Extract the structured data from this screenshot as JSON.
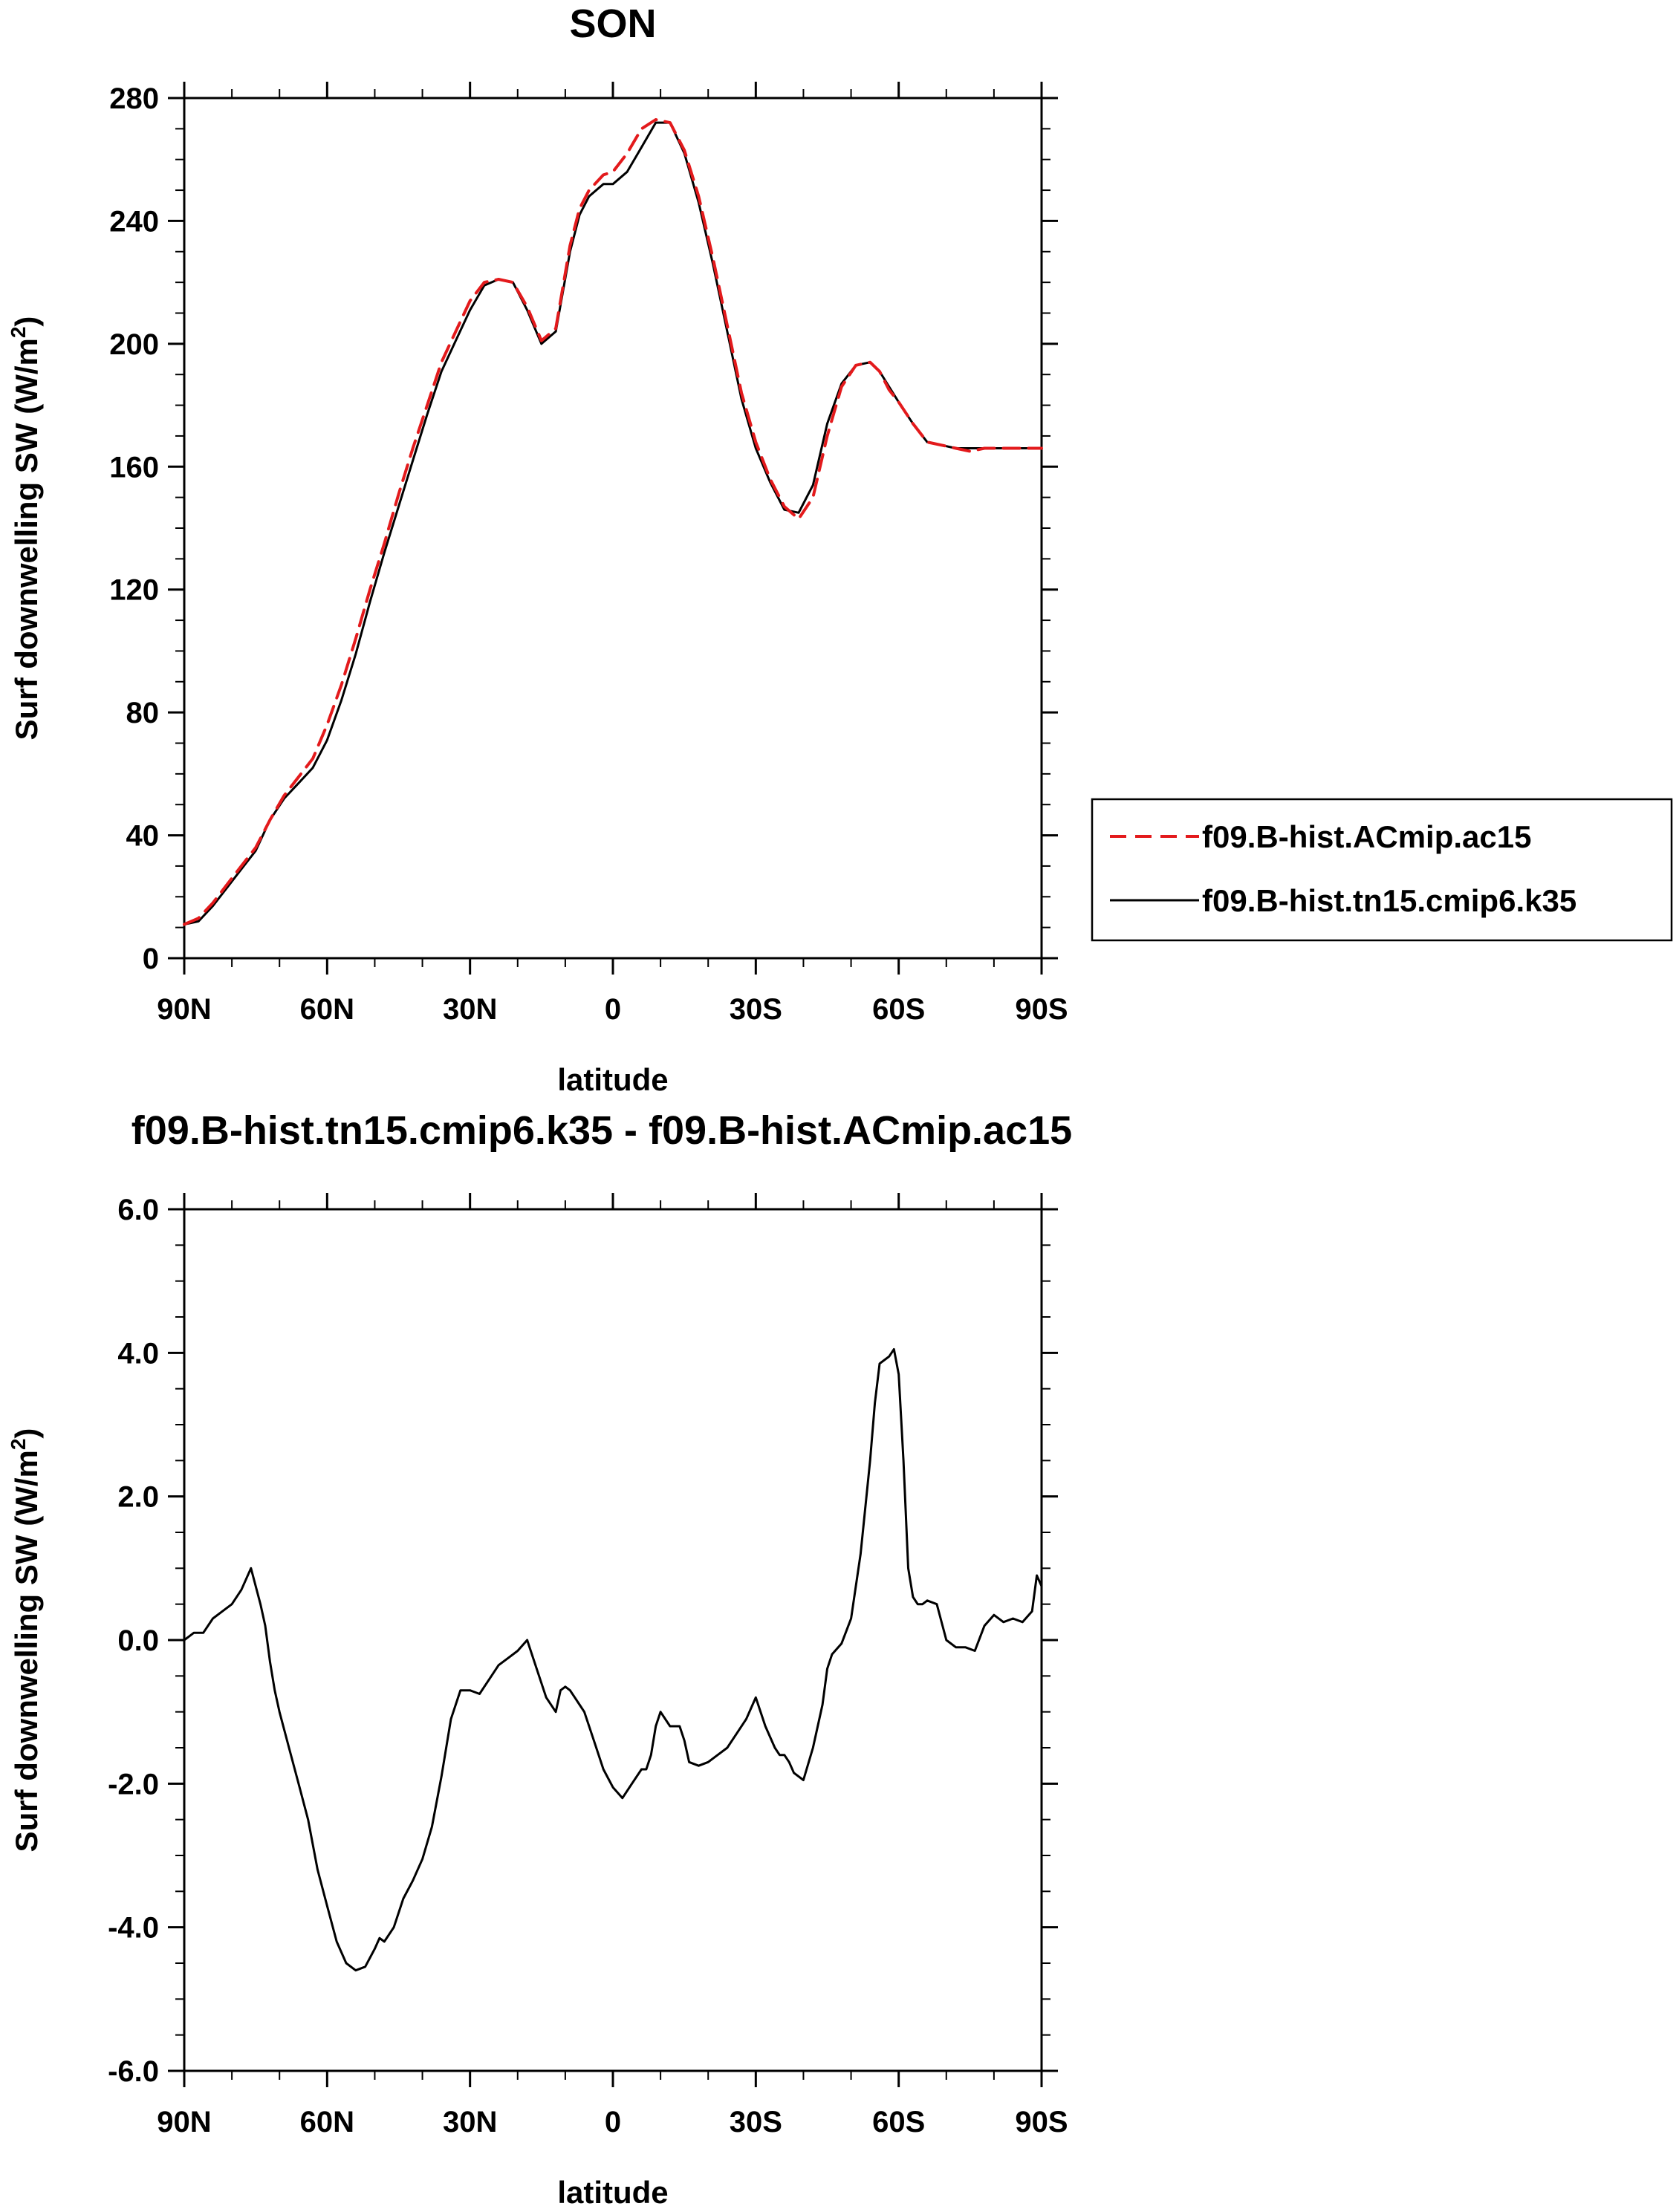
{
  "chart_data": [
    {
      "type": "line",
      "title": "SON",
      "xlabel": "latitude",
      "ylabel": "Surf downwelling SW (W/m",
      "ylabel_sup": "2",
      "ylabel_close": ")",
      "xlim": [
        90,
        -90
      ],
      "ylim": [
        0,
        280
      ],
      "x_ticks": [
        90,
        60,
        30,
        0,
        -30,
        -60,
        -90
      ],
      "x_tick_labels": [
        "90N",
        "60N",
        "30N",
        "0",
        "30S",
        "60S",
        "90S"
      ],
      "y_ticks": [
        0,
        40,
        80,
        120,
        160,
        200,
        240,
        280
      ],
      "y_tick_labels": [
        "0",
        "40",
        "80",
        "120",
        "160",
        "200",
        "240",
        "280"
      ],
      "legend_position": "right",
      "series": [
        {
          "name": "f09.B-hist.ACmip.ac15",
          "color": "#e31a1c",
          "dash": "dashed",
          "x": [
            90,
            87,
            84,
            81,
            78,
            75,
            72,
            69,
            66,
            63,
            60,
            57,
            54,
            51,
            48,
            45,
            42,
            39,
            36,
            33,
            30,
            27,
            24,
            21,
            18,
            15,
            12,
            9,
            7,
            5,
            2,
            0,
            -3,
            -6,
            -9,
            -12,
            -15,
            -18,
            -21,
            -24,
            -27,
            -30,
            -33,
            -36,
            -39,
            -42,
            -45,
            -48,
            -51,
            -54,
            -56,
            -58,
            -60,
            -63,
            -66,
            -69,
            -72,
            -75,
            -78,
            -81,
            -84,
            -87,
            -90
          ],
          "y": [
            11,
            13,
            18,
            24,
            30,
            36,
            45,
            53,
            59,
            65,
            76,
            89,
            104,
            120,
            135,
            151,
            166,
            180,
            194,
            204,
            214,
            220,
            221,
            220,
            212,
            201,
            205,
            232,
            244,
            250,
            255,
            256,
            262,
            270,
            273,
            272,
            263,
            248,
            228,
            206,
            184,
            168,
            156,
            147,
            143,
            150,
            170,
            186,
            193,
            194,
            191,
            185,
            181,
            174,
            168,
            167,
            166,
            165,
            166,
            166,
            166,
            166,
            166
          ]
        },
        {
          "name": "f09.B-hist.tn15.cmip6.k35",
          "color": "#000000",
          "dash": "solid",
          "x": [
            90,
            87,
            84,
            81,
            78,
            75,
            72,
            69,
            66,
            63,
            60,
            57,
            54,
            51,
            48,
            45,
            42,
            39,
            36,
            33,
            30,
            27,
            24,
            21,
            18,
            15,
            12,
            9,
            7,
            5,
            2,
            0,
            -3,
            -6,
            -9,
            -12,
            -15,
            -18,
            -21,
            -24,
            -27,
            -30,
            -33,
            -36,
            -39,
            -42,
            -45,
            -48,
            -51,
            -54,
            -56,
            -58,
            -60,
            -63,
            -66,
            -69,
            -72,
            -75,
            -78,
            -81,
            -84,
            -87,
            -90
          ],
          "y": [
            11,
            12,
            17,
            23,
            29,
            35,
            45,
            52,
            57,
            62,
            71,
            84,
            99,
            116,
            132,
            147,
            162,
            177,
            191,
            201,
            211,
            219,
            221,
            220,
            211,
            200,
            204,
            230,
            242,
            248,
            252,
            252,
            256,
            264,
            272,
            272,
            262,
            246,
            226,
            204,
            182,
            166,
            155,
            146,
            145,
            154,
            174,
            187,
            193,
            194,
            191,
            186,
            181,
            174,
            168,
            167,
            166,
            166,
            166,
            166,
            166,
            166,
            166
          ]
        }
      ]
    },
    {
      "type": "line",
      "title": "f09.B-hist.tn15.cmip6.k35 - f09.B-hist.ACmip.ac15",
      "xlabel": "latitude",
      "ylabel": "Surf downwelling SW (W/m",
      "ylabel_sup": "2",
      "ylabel_close": ")",
      "xlim": [
        90,
        -90
      ],
      "ylim": [
        -6,
        6
      ],
      "x_ticks": [
        90,
        60,
        30,
        0,
        -30,
        -60,
        -90
      ],
      "x_tick_labels": [
        "90N",
        "60N",
        "30N",
        "0",
        "30S",
        "60S",
        "90S"
      ],
      "y_ticks": [
        -6,
        -4,
        -2,
        0,
        2,
        4,
        6
      ],
      "y_tick_labels": [
        "-6.0",
        "-4.0",
        "-2.0",
        "0.0",
        "2.0",
        "4.0",
        "6.0"
      ],
      "series": [
        {
          "color": "#000000",
          "dash": "solid",
          "x": [
            90,
            88,
            86,
            84,
            82,
            80,
            78,
            76,
            74,
            73,
            72,
            71,
            70,
            68,
            66,
            64,
            62,
            60,
            58,
            56,
            54,
            52,
            50,
            49,
            48,
            46,
            44,
            42,
            40,
            38,
            36,
            34,
            32,
            30,
            28,
            27,
            26,
            24,
            22,
            20,
            18,
            16,
            14,
            12,
            11,
            10,
            9,
            8,
            7,
            6,
            4,
            2,
            0,
            -2,
            -4,
            -6,
            -7,
            -8,
            -9,
            -10,
            -12,
            -14,
            -15,
            -16,
            -18,
            -20,
            -22,
            -24,
            -26,
            -28,
            -30,
            -32,
            -34,
            -35,
            -36,
            -37,
            -38,
            -40,
            -42,
            -44,
            -45,
            -46,
            -48,
            -50,
            -52,
            -54,
            -55,
            -56,
            -57,
            -58,
            -59,
            -60,
            -61,
            -62,
            -63,
            -64,
            -65,
            -66,
            -68,
            -70,
            -72,
            -74,
            -76,
            -78,
            -80,
            -82,
            -84,
            -86,
            -88,
            -89,
            -90
          ],
          "y": [
            0.0,
            0.1,
            0.1,
            0.3,
            0.4,
            0.5,
            0.7,
            1.0,
            0.5,
            0.2,
            -0.3,
            -0.7,
            -1.0,
            -1.5,
            -2.0,
            -2.5,
            -3.2,
            -3.7,
            -4.2,
            -4.5,
            -4.6,
            -4.55,
            -4.3,
            -4.15,
            -4.2,
            -4.0,
            -3.6,
            -3.35,
            -3.05,
            -2.6,
            -1.9,
            -1.1,
            -0.7,
            -0.7,
            -0.75,
            -0.65,
            -0.55,
            -0.35,
            -0.25,
            -0.15,
            0.0,
            -0.4,
            -0.8,
            -1.0,
            -0.7,
            -0.65,
            -0.7,
            -0.8,
            -0.9,
            -1.0,
            -1.4,
            -1.8,
            -2.05,
            -2.2,
            -2.0,
            -1.8,
            -1.8,
            -1.6,
            -1.2,
            -1.0,
            -1.2,
            -1.2,
            -1.4,
            -1.7,
            -1.75,
            -1.7,
            -1.6,
            -1.5,
            -1.3,
            -1.1,
            -0.8,
            -1.2,
            -1.5,
            -1.6,
            -1.6,
            -1.7,
            -1.85,
            -1.95,
            -1.5,
            -0.9,
            -0.4,
            -0.2,
            -0.05,
            0.3,
            1.2,
            2.5,
            3.3,
            3.85,
            3.9,
            3.95,
            4.05,
            3.7,
            2.5,
            1.0,
            0.6,
            0.5,
            0.5,
            0.55,
            0.5,
            0.0,
            -0.1,
            -0.1,
            -0.15,
            0.2,
            0.35,
            0.25,
            0.3,
            0.25,
            0.4,
            0.9,
            0.75
          ]
        }
      ]
    }
  ]
}
